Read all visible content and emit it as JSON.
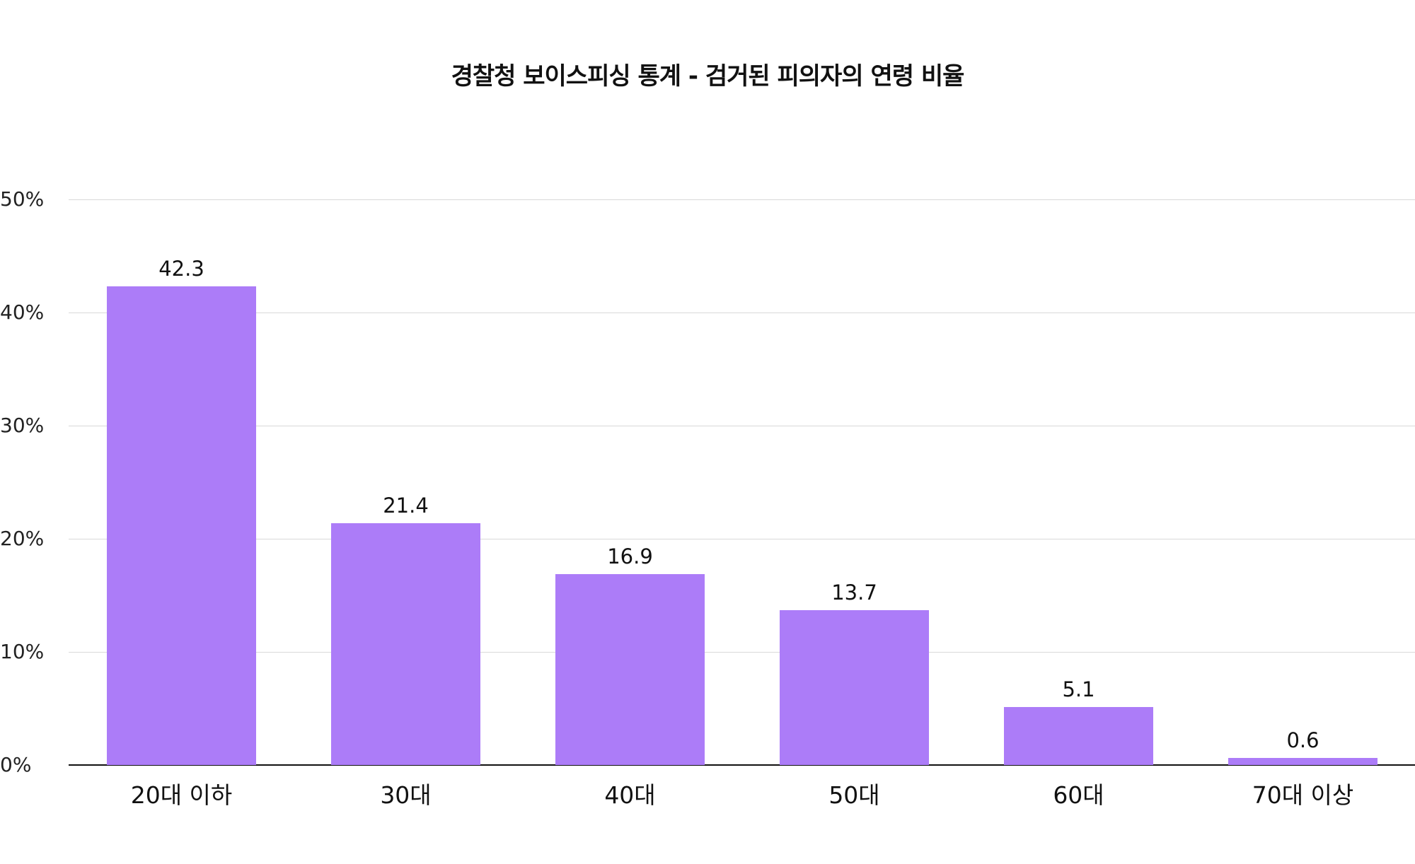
{
  "chart_data": {
    "type": "bar",
    "title": "경찰청 보이스피싱 통계 - 검거된 피의자의 연령 비율",
    "categories": [
      "20대 이하",
      "30대",
      "40대",
      "50대",
      "60대",
      "70대 이상"
    ],
    "values": [
      42.3,
      21.4,
      16.9,
      13.7,
      5.1,
      0.6
    ],
    "value_labels": [
      "42.3",
      "21.4",
      "16.9",
      "13.7",
      "5.1",
      "0.6"
    ],
    "xlabel": "",
    "ylabel": "",
    "ylim": [
      0,
      50
    ],
    "yticks": [
      "0%",
      "10%",
      "20%",
      "30%",
      "40%",
      "50%"
    ],
    "grid": true,
    "legend": null,
    "bar_color": "#ac7cf8"
  }
}
